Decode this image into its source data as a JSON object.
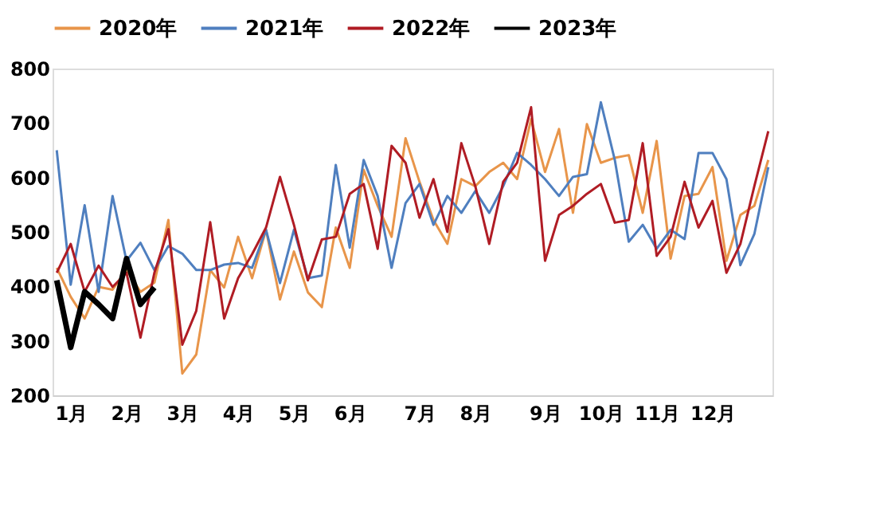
{
  "chart_data": {
    "type": "line",
    "categories": [
      null,
      "1月",
      null,
      null,
      null,
      "2月",
      null,
      null,
      null,
      "3月",
      null,
      null,
      null,
      "4月",
      null,
      null,
      null,
      "5月",
      null,
      null,
      null,
      "6月",
      null,
      null,
      null,
      null,
      "7月",
      null,
      null,
      null,
      "8月",
      null,
      null,
      null,
      null,
      "9月",
      null,
      null,
      null,
      "10月",
      null,
      null,
      null,
      "11月",
      null,
      null,
      null,
      "12月",
      null,
      null,
      null,
      null
    ],
    "series": [
      {
        "name": "2020年",
        "color": "#e8954a",
        "values": [
          434,
          381,
          341,
          399,
          394,
          430,
          390,
          407,
          522,
          240,
          275,
          430,
          398,
          491,
          415,
          504,
          376,
          464,
          389,
          362,
          508,
          434,
          614,
          548,
          491,
          672,
          592,
          522,
          478,
          597,
          584,
          610,
          627,
          597,
          707,
          610,
          689,
          535,
          698,
          627,
          636,
          641,
          535,
          667,
          451,
          566,
          570,
          619,
          447,
          531,
          548,
          632
        ]
      },
      {
        "name": "2021年",
        "color": "#4f7fbf",
        "values": [
          650,
          403,
          549,
          390,
          566,
          447,
          480,
          430,
          474,
          460,
          430,
          430,
          440,
          443,
          434,
          504,
          406,
          504,
          415,
          420,
          623,
          471,
          632,
          566,
          434,
          553,
          588,
          513,
          566,
          535,
          575,
          535,
          584,
          645,
          623,
          597,
          566,
          601,
          606,
          738,
          632,
          482,
          513,
          469,
          504,
          487,
          645,
          645,
          597,
          439,
          496,
          619
        ]
      },
      {
        "name": "2022年",
        "color": "#b01c24",
        "values": [
          425,
          478,
          390,
          438,
          399,
          425,
          306,
          425,
          505,
          293,
          355,
          518,
          341,
          415,
          459,
          508,
          601,
          513,
          411,
          486,
          491,
          570,
          588,
          469,
          658,
          627,
          526,
          597,
          500,
          663,
          584,
          478,
          592,
          627,
          729,
          447,
          531,
          548,
          570,
          588,
          517,
          522,
          663,
          456,
          491,
          592,
          508,
          557,
          425,
          478,
          584,
          685
        ]
      },
      {
        "name": "2023年",
        "color": "#000000",
        "values": [
          411,
          288,
          390,
          367,
          341,
          451,
          367,
          398,
          null,
          null,
          null,
          null,
          null,
          null,
          null,
          null,
          null,
          null,
          null,
          null,
          null,
          null,
          null,
          null,
          null,
          null,
          null,
          null,
          null,
          null,
          null,
          null,
          null,
          null,
          null,
          null,
          null,
          null,
          null,
          null,
          null,
          null,
          null,
          null,
          null,
          null,
          null,
          null,
          null,
          null,
          null,
          null
        ]
      }
    ],
    "ylim": [
      200,
      800
    ],
    "yticks": [
      200,
      300,
      400,
      500,
      600,
      700,
      800
    ],
    "grid": false,
    "legend": "top",
    "marker": "none",
    "line_style": "solid"
  }
}
